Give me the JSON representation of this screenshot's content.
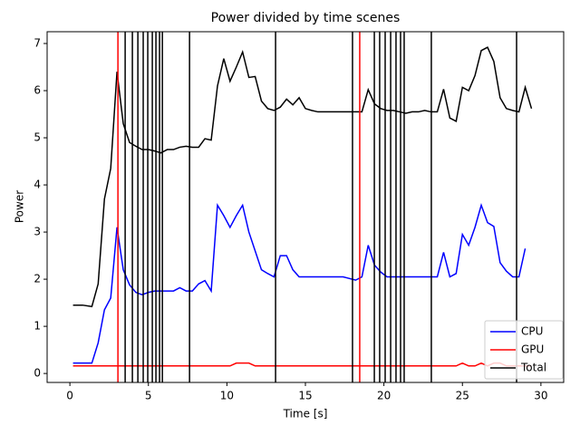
{
  "chart_data": {
    "type": "line",
    "title": "Power divided by time scenes",
    "x_label": "Time [s]",
    "y_label": "Power",
    "x": [
      0.2,
      0.8,
      1.4,
      1.8,
      2.2,
      2.6,
      3.0,
      3.4,
      3.8,
      4.2,
      4.6,
      5.0,
      5.4,
      5.8,
      6.2,
      6.6,
      7.0,
      7.4,
      7.8,
      8.2,
      8.6,
      9.0,
      9.4,
      9.8,
      10.2,
      10.6,
      11.0,
      11.4,
      11.8,
      12.2,
      12.6,
      13.0,
      13.4,
      13.8,
      14.2,
      14.6,
      15.0,
      15.4,
      15.8,
      16.6,
      17.4,
      18.2,
      18.6,
      19.0,
      19.4,
      19.8,
      20.2,
      20.6,
      21.0,
      21.4,
      21.8,
      22.2,
      22.6,
      23.0,
      23.4,
      23.8,
      24.2,
      24.6,
      25.0,
      25.4,
      25.8,
      26.2,
      26.6,
      27.0,
      27.4,
      27.8,
      28.2,
      28.6,
      29.0,
      29.4
    ],
    "series": [
      {
        "name": "CPU",
        "color": "#0000ff",
        "values": [
          0.22,
          0.22,
          0.22,
          0.65,
          1.35,
          1.6,
          3.1,
          2.2,
          1.88,
          1.72,
          1.67,
          1.72,
          1.75,
          1.75,
          1.75,
          1.75,
          1.82,
          1.75,
          1.75,
          1.9,
          1.97,
          1.75,
          3.57,
          3.35,
          3.1,
          3.35,
          3.57,
          3.0,
          2.6,
          2.2,
          2.12,
          2.05,
          2.5,
          2.5,
          2.2,
          2.05,
          2.05,
          2.05,
          2.05,
          2.05,
          2.05,
          1.98,
          2.05,
          2.72,
          2.3,
          2.15,
          2.05,
          2.05,
          2.05,
          2.05,
          2.05,
          2.05,
          2.05,
          2.05,
          2.05,
          2.57,
          2.05,
          2.12,
          2.95,
          2.72,
          3.1,
          3.57,
          3.2,
          3.12,
          2.35,
          2.17,
          2.05,
          2.05,
          2.65,
          null
        ]
      },
      {
        "name": "GPU",
        "color": "#ff0000",
        "values": [
          0.16,
          0.16,
          0.16,
          0.16,
          0.16,
          0.16,
          0.16,
          0.16,
          0.16,
          0.16,
          0.16,
          0.16,
          0.16,
          0.16,
          0.16,
          0.16,
          0.16,
          0.16,
          0.16,
          0.16,
          0.16,
          0.16,
          0.16,
          0.16,
          0.16,
          0.22,
          0.22,
          0.22,
          0.16,
          0.16,
          0.16,
          0.16,
          0.16,
          0.16,
          0.16,
          0.16,
          0.16,
          0.16,
          0.16,
          0.16,
          0.16,
          0.16,
          0.16,
          0.16,
          0.16,
          0.16,
          0.16,
          0.16,
          0.16,
          0.16,
          0.16,
          0.16,
          0.16,
          0.16,
          0.16,
          0.16,
          0.16,
          0.16,
          0.22,
          0.16,
          0.16,
          0.22,
          0.16,
          0.22,
          0.22,
          0.16,
          0.16,
          0.16,
          0.16,
          0.16
        ]
      },
      {
        "name": "Total",
        "color": "#000000",
        "values": [
          1.45,
          1.45,
          1.42,
          1.9,
          3.7,
          4.35,
          6.4,
          5.3,
          4.9,
          4.82,
          4.75,
          4.75,
          4.72,
          4.68,
          4.75,
          4.75,
          4.8,
          4.82,
          4.8,
          4.8,
          4.98,
          4.95,
          6.1,
          6.68,
          6.2,
          6.5,
          6.82,
          6.28,
          6.3,
          5.78,
          5.62,
          5.58,
          5.65,
          5.82,
          5.7,
          5.85,
          5.62,
          5.58,
          5.55,
          5.55,
          5.55,
          5.55,
          5.55,
          6.02,
          5.72,
          5.62,
          5.58,
          5.58,
          5.55,
          5.52,
          5.55,
          5.55,
          5.58,
          5.55,
          5.55,
          6.03,
          5.42,
          5.35,
          6.07,
          6.0,
          6.32,
          6.85,
          6.92,
          6.62,
          5.85,
          5.62,
          5.58,
          5.55,
          6.07,
          5.62
        ]
      }
    ],
    "scene_lines": [
      {
        "x": 3.06,
        "color": "#ff0000"
      },
      {
        "x": 3.52,
        "color": "#000000"
      },
      {
        "x": 3.98,
        "color": "#000000"
      },
      {
        "x": 4.33,
        "color": "#000000"
      },
      {
        "x": 4.67,
        "color": "#000000"
      },
      {
        "x": 4.96,
        "color": "#000000"
      },
      {
        "x": 5.25,
        "color": "#000000"
      },
      {
        "x": 5.48,
        "color": "#000000"
      },
      {
        "x": 5.71,
        "color": "#000000"
      },
      {
        "x": 5.89,
        "color": "#000000"
      },
      {
        "x": 7.62,
        "color": "#000000"
      },
      {
        "x": 13.1,
        "color": "#000000"
      },
      {
        "x": 18.0,
        "color": "#000000"
      },
      {
        "x": 18.46,
        "color": "#ff0000"
      },
      {
        "x": 19.39,
        "color": "#000000"
      },
      {
        "x": 19.73,
        "color": "#000000"
      },
      {
        "x": 20.08,
        "color": "#000000"
      },
      {
        "x": 20.43,
        "color": "#000000"
      },
      {
        "x": 20.77,
        "color": "#000000"
      },
      {
        "x": 21.06,
        "color": "#000000"
      },
      {
        "x": 21.29,
        "color": "#000000"
      },
      {
        "x": 23.02,
        "color": "#000000"
      },
      {
        "x": 28.45,
        "color": "#000000"
      }
    ],
    "xlim": [
      -1.45,
      31.45
    ],
    "ylim": [
      -0.19,
      7.25
    ],
    "xticks": [
      0,
      5,
      10,
      15,
      20,
      25,
      30
    ],
    "yticks": [
      0,
      1,
      2,
      3,
      4,
      5,
      6,
      7
    ],
    "grid": false,
    "legend": "lower right"
  }
}
